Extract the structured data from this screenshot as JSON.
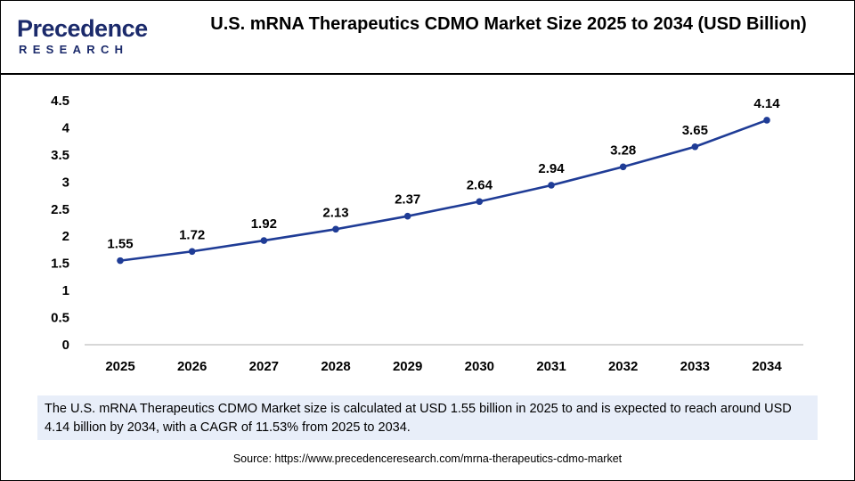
{
  "brand": {
    "name": "Precedence",
    "sub": "RESEARCH"
  },
  "chart_data": {
    "type": "line",
    "title": "U.S. mRNA Therapeutics CDMO Market Size 2025 to 2034 (USD Billion)",
    "xlabel": "",
    "ylabel": "",
    "categories": [
      "2025",
      "2026",
      "2027",
      "2028",
      "2029",
      "2030",
      "2031",
      "2032",
      "2033",
      "2034"
    ],
    "values": [
      1.55,
      1.72,
      1.92,
      2.13,
      2.37,
      2.64,
      2.94,
      3.28,
      3.65,
      4.14
    ],
    "data_labels": [
      "1.55",
      "1.72",
      "1.92",
      "2.13",
      "2.37",
      "2.64",
      "2.94",
      "3.28",
      "3.65",
      "4.14"
    ],
    "ylim": [
      0,
      4.5
    ],
    "yticks": [
      "0",
      "0.5",
      "1",
      "1.5",
      "2",
      "2.5",
      "3",
      "3.5",
      "4",
      "4.5"
    ],
    "grid": false,
    "line_color": "#1f3c96"
  },
  "note": "The U.S. mRNA Therapeutics CDMO Market size is calculated at USD 1.55 billion in 2025 to and is expected to reach around USD 4.14 billion by 2034, with a CAGR of 11.53% from 2025 to 2034.",
  "source": "Source: https://www.precedenceresearch.com/mrna-therapeutics-cdmo-market"
}
